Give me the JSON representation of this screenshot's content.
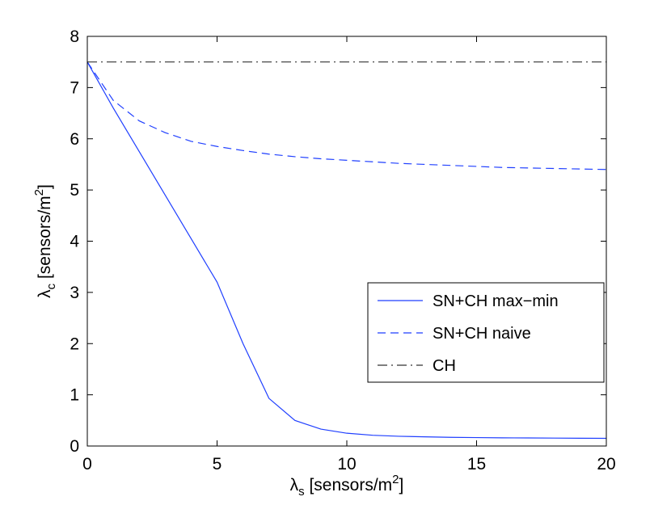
{
  "chart_data": {
    "type": "line",
    "title": "",
    "xlabel": {
      "symbol": "λ",
      "sub": "s",
      "text": " [sensors/m",
      "sup": "2",
      "close": "]"
    },
    "ylabel": {
      "symbol": "λ",
      "sub": "c",
      "text": " [sensors/m",
      "sup": "2",
      "close": "]"
    },
    "xlim": [
      0,
      20
    ],
    "ylim": [
      0,
      8
    ],
    "xticks": [
      0,
      5,
      10,
      15,
      20
    ],
    "yticks": [
      0,
      1,
      2,
      3,
      4,
      5,
      6,
      7,
      8
    ],
    "xtick_labels": [
      "0",
      "5",
      "10",
      "15",
      "20"
    ],
    "ytick_labels": [
      "0",
      "1",
      "2",
      "3",
      "4",
      "5",
      "6",
      "7",
      "8"
    ],
    "grid": false,
    "legend_position": "lower-right",
    "series": [
      {
        "name": "SN+CH max−min",
        "color": "#1f3fff",
        "style": "solid",
        "x": [
          0,
          1,
          2,
          3,
          4,
          5,
          6,
          7,
          8,
          9,
          10,
          11,
          12,
          13,
          14,
          15,
          16,
          17,
          18,
          19,
          20
        ],
        "y": [
          7.5,
          6.6,
          5.75,
          4.9,
          4.05,
          3.2,
          2.0,
          0.93,
          0.5,
          0.33,
          0.25,
          0.21,
          0.19,
          0.18,
          0.17,
          0.165,
          0.16,
          0.158,
          0.155,
          0.152,
          0.15
        ]
      },
      {
        "name": "SN+CH naive",
        "color": "#1f3fff",
        "style": "dashed",
        "x": [
          0,
          1,
          2,
          3,
          4,
          5,
          6,
          7,
          8,
          9,
          10,
          11,
          12,
          13,
          14,
          15,
          16,
          17,
          18,
          19,
          20
        ],
        "y": [
          7.5,
          6.75,
          6.35,
          6.12,
          5.95,
          5.85,
          5.77,
          5.7,
          5.65,
          5.61,
          5.58,
          5.55,
          5.52,
          5.5,
          5.48,
          5.46,
          5.44,
          5.43,
          5.42,
          5.41,
          5.4
        ]
      },
      {
        "name": "CH",
        "color": "#333333",
        "style": "dashdot",
        "x": [
          0,
          20
        ],
        "y": [
          7.5,
          7.5
        ]
      }
    ]
  }
}
